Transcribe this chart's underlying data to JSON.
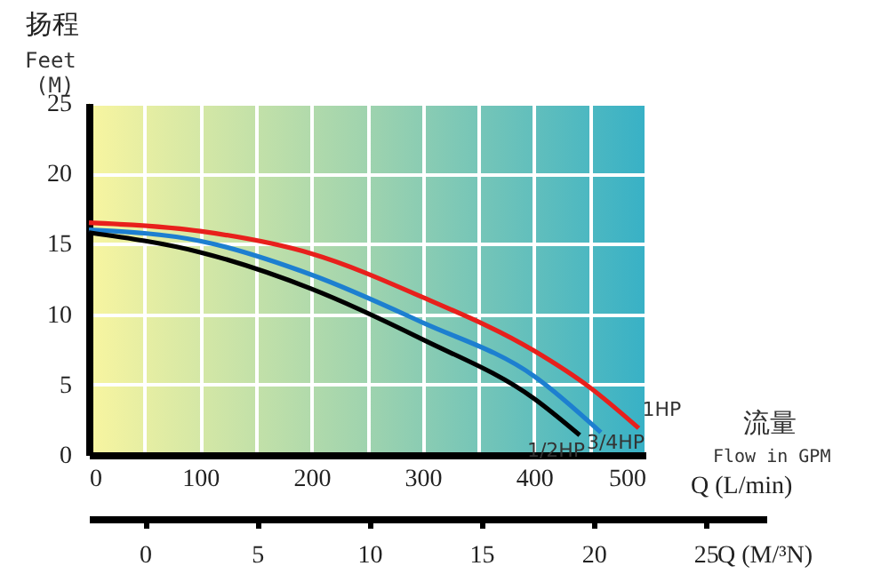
{
  "chart_data": {
    "type": "line",
    "ylabel": "扬程",
    "xlabel": "Q (L/min)",
    "x2label": "Q (M/³N)",
    "annotations": [
      "Feet",
      "(M)",
      "流量",
      "Flow in GPM"
    ],
    "xlim": [
      0,
      500
    ],
    "xticks": [
      0,
      {
        "value": 50,
        "label": null
      },
      100,
      {
        "value": 150,
        "label": null
      },
      200,
      {
        "value": 250,
        "label": null
      },
      300,
      {
        "value": 350,
        "label": null
      },
      400,
      {
        "value": 450,
        "label": null
      },
      500
    ],
    "x2lim": [
      -2.5,
      27.7
    ],
    "x2ticks": [
      0,
      5,
      10,
      15,
      20,
      25
    ],
    "ylim": [
      0,
      25
    ],
    "yticks": [
      0,
      5,
      10,
      15,
      20,
      25
    ],
    "grid": true,
    "legend": false,
    "marker": "none",
    "line_style": "solid",
    "series": [
      {
        "name": "1HP",
        "color": "#e8201c",
        "x": [
          0,
          100,
          200,
          300,
          400,
          450,
          494
        ],
        "values": [
          16.5,
          15.9,
          14.3,
          11.2,
          7.4,
          4.8,
          1.9
        ]
      },
      {
        "name": "3/4HP",
        "color": "#1d7fd0",
        "x": [
          0,
          100,
          200,
          300,
          400,
          460
        ],
        "values": [
          16.0,
          15.2,
          12.8,
          9.4,
          5.6,
          1.6
        ]
      },
      {
        "name": "1/2HP",
        "color": "#000000",
        "x": [
          0,
          100,
          200,
          300,
          400,
          441
        ],
        "values": [
          15.8,
          14.4,
          11.8,
          8.2,
          4.0,
          1.4
        ]
      }
    ]
  }
}
